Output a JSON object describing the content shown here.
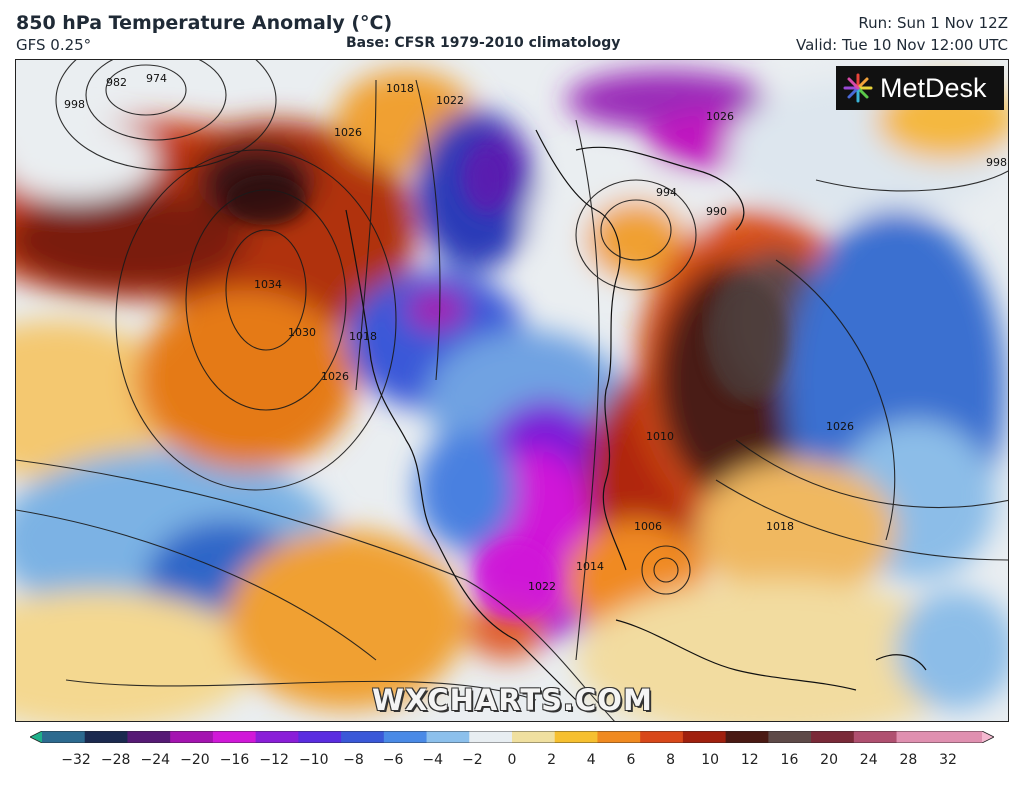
{
  "header": {
    "title": "850 hPa Temperature Anomaly (°C)",
    "model": "GFS 0.25°",
    "base": "Base: CFSR 1979-2010 climatology",
    "run": "Run: Sun 1 Nov 12Z",
    "valid": "Valid: Tue 10 Nov 12:00 UTC"
  },
  "logo": {
    "text": "MetDesk",
    "icon": "sunburst-logo-icon"
  },
  "watermark": "WXCHARTS.COM",
  "isobar_labels": [
    "982",
    "974",
    "998",
    "1018",
    "1022",
    "1026",
    "1034",
    "1030",
    "1026",
    "1018",
    "1026",
    "1018",
    "1014",
    "1022",
    "1006",
    "994",
    "990",
    "998",
    "1010",
    "1026"
  ],
  "colorbar": {
    "tick_labels": [
      "−32",
      "−28",
      "−24",
      "−20",
      "−16",
      "−12",
      "−10",
      "−8",
      "−6",
      "−4",
      "−2",
      "0",
      "2",
      "4",
      "6",
      "8",
      "10",
      "12",
      "16",
      "20",
      "24",
      "28",
      "32"
    ],
    "colors": [
      "#1fb08a",
      "#2c6a8f",
      "#1b2a4f",
      "#561a75",
      "#a414b0",
      "#d018d8",
      "#8a1ed8",
      "#5a2ce0",
      "#3a58d8",
      "#4a8ae6",
      "#8cc0ec",
      "#e8eef2",
      "#f0e0a0",
      "#f6c030",
      "#f08a20",
      "#d8481a",
      "#a0200e",
      "#4a1a14",
      "#5e4a48",
      "#7a2a38",
      "#b05070",
      "#e090b0",
      "#f4b8d0"
    ]
  }
}
